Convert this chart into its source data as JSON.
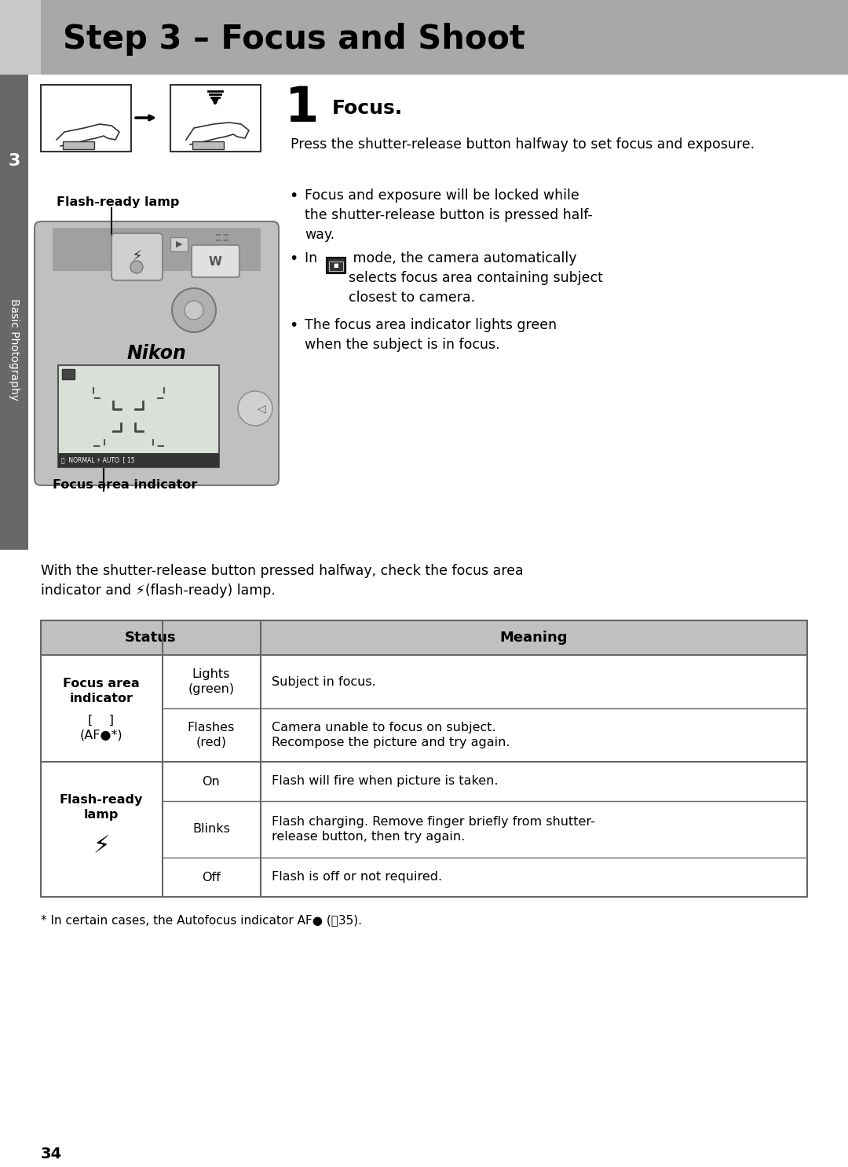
{
  "title": "Step 3 – Focus and Shoot",
  "page_bg": "#ffffff",
  "header_bg": "#aaaaaa",
  "header_left_bg": "#c0c0c0",
  "sidebar_bg": "#555555",
  "sidebar_num": "3",
  "sidebar_text": "Basic Photography",
  "step_num": "1",
  "step_heading": "Focus.",
  "body_text": "Press the shutter-release button halfway to set focus and exposure.",
  "bullet1": "Focus and exposure will be locked while\nthe shutter-release button is pressed half-\nway.",
  "bullet2_pre": "In ",
  "bullet2_post": " mode, the camera automatically\nselects focus area containing subject\nclosest to camera.",
  "bullet3": "The focus area indicator lights green\nwhen the subject is in focus.",
  "label_flash": "Flash-ready lamp",
  "label_focus": "Focus area indicator",
  "para_text": "With the shutter-release button pressed halfway, check the focus area\nindicator and ⚡(flash-ready) lamp.",
  "th_status": "Status",
  "th_meaning": "Meaning",
  "footnote": "* In certain cases, the Autofocus indicator AF● (🔦35).",
  "page_num": "34",
  "table_hdr_bg": "#c0c0c0",
  "table_line": "#666666",
  "cam_body_color": "#b8b8b8",
  "cam_dark": "#888888",
  "cam_darker": "#555555"
}
